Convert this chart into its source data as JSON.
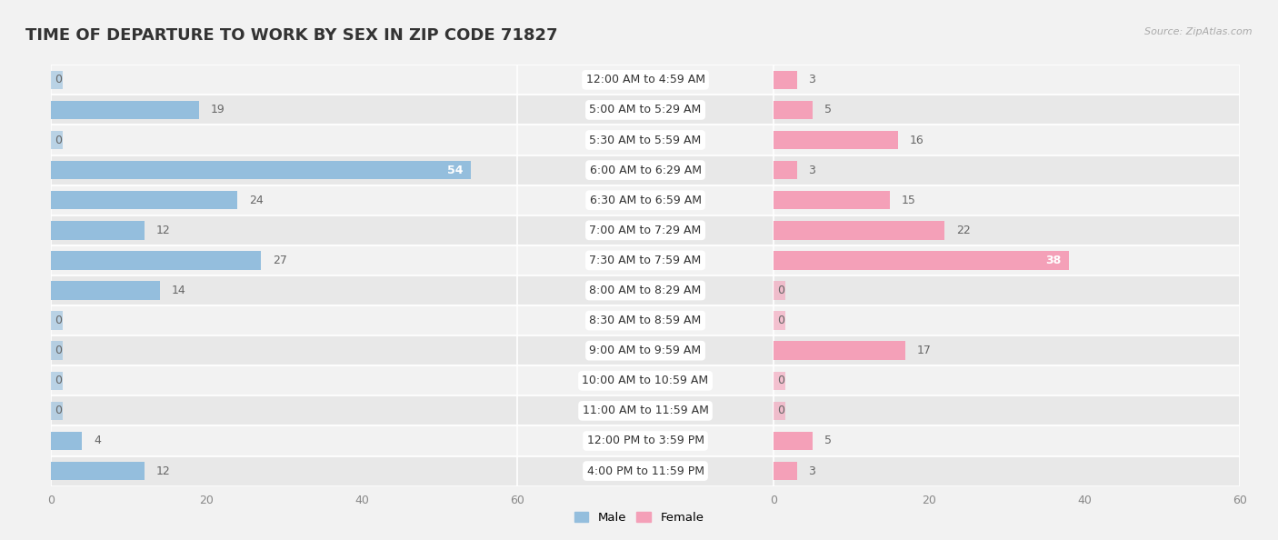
{
  "title": "TIME OF DEPARTURE TO WORK BY SEX IN ZIP CODE 71827",
  "source_text": "Source: ZipAtlas.com",
  "categories": [
    "12:00 AM to 4:59 AM",
    "5:00 AM to 5:29 AM",
    "5:30 AM to 5:59 AM",
    "6:00 AM to 6:29 AM",
    "6:30 AM to 6:59 AM",
    "7:00 AM to 7:29 AM",
    "7:30 AM to 7:59 AM",
    "8:00 AM to 8:29 AM",
    "8:30 AM to 8:59 AM",
    "9:00 AM to 9:59 AM",
    "10:00 AM to 10:59 AM",
    "11:00 AM to 11:59 AM",
    "12:00 PM to 3:59 PM",
    "4:00 PM to 11:59 PM"
  ],
  "male_values": [
    0,
    19,
    0,
    54,
    24,
    12,
    27,
    14,
    0,
    0,
    0,
    0,
    4,
    12
  ],
  "female_values": [
    3,
    5,
    16,
    3,
    15,
    22,
    38,
    0,
    0,
    17,
    0,
    0,
    5,
    3
  ],
  "male_color": "#94bedd",
  "female_color": "#f4a0b8",
  "male_color_dark": "#6baed6",
  "female_color_dark": "#e8607a",
  "row_bg_even": "#f2f2f2",
  "row_bg_odd": "#e8e8e8",
  "fig_bg": "#f2f2f2",
  "xlim": 60,
  "bar_height": 0.62,
  "title_fontsize": 13,
  "label_fontsize": 9,
  "value_fontsize": 9,
  "axis_fontsize": 9,
  "cat_fontsize": 9
}
